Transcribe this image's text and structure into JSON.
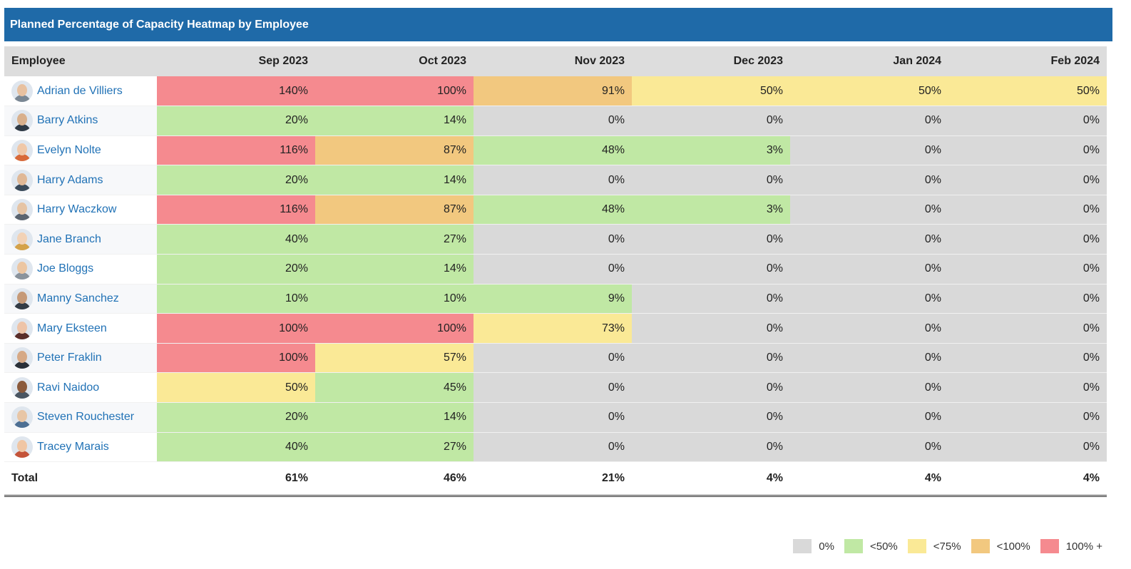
{
  "title": "Planned Percentage of Capacity Heatmap by Employee",
  "columns": {
    "employee": "Employee",
    "months": [
      "Sep 2023",
      "Oct 2023",
      "Nov 2023",
      "Dec 2023",
      "Jan 2024",
      "Feb 2024"
    ]
  },
  "colors": {
    "gray": "#d9d9d9",
    "green": "#c0e8a4",
    "yellow": "#fae996",
    "orange": "#f2c87f",
    "red": "#f58a8f",
    "header_blue": "#1f6aa8",
    "link": "#2172b6"
  },
  "rows": [
    {
      "name": "Adrian de Villiers",
      "values": [
        "140%",
        "100%",
        "91%",
        "50%",
        "50%",
        "50%"
      ],
      "avatar": {
        "skin": "#e8c1a0",
        "shirt": "#7a8793"
      }
    },
    {
      "name": "Barry Atkins",
      "values": [
        "20%",
        "14%",
        "0%",
        "0%",
        "0%",
        "0%"
      ],
      "avatar": {
        "skin": "#d9b08c",
        "shirt": "#2f3a45"
      }
    },
    {
      "name": "Evelyn Nolte",
      "values": [
        "116%",
        "87%",
        "48%",
        "3%",
        "0%",
        "0%"
      ],
      "avatar": {
        "skin": "#f0c8a8",
        "shirt": "#d86a3a"
      }
    },
    {
      "name": "Harry Adams",
      "values": [
        "20%",
        "14%",
        "0%",
        "0%",
        "0%",
        "0%"
      ],
      "avatar": {
        "skin": "#e0b896",
        "shirt": "#3a4a5a"
      }
    },
    {
      "name": "Harry Waczkow",
      "values": [
        "116%",
        "87%",
        "48%",
        "3%",
        "0%",
        "0%"
      ],
      "avatar": {
        "skin": "#e6c4a4",
        "shirt": "#5a6470"
      }
    },
    {
      "name": "Jane Branch",
      "values": [
        "40%",
        "27%",
        "0%",
        "0%",
        "0%",
        "0%"
      ],
      "avatar": {
        "skin": "#f2d2b6",
        "shirt": "#d4a24a"
      }
    },
    {
      "name": "Joe Bloggs",
      "values": [
        "20%",
        "14%",
        "0%",
        "0%",
        "0%",
        "0%"
      ],
      "avatar": {
        "skin": "#ecc6a2",
        "shirt": "#8a939c"
      }
    },
    {
      "name": "Manny Sanchez",
      "values": [
        "10%",
        "10%",
        "9%",
        "0%",
        "0%",
        "0%"
      ],
      "avatar": {
        "skin": "#c69a78",
        "shirt": "#333c45"
      }
    },
    {
      "name": "Mary Eksteen",
      "values": [
        "100%",
        "100%",
        "73%",
        "0%",
        "0%",
        "0%"
      ],
      "avatar": {
        "skin": "#eec4a8",
        "shirt": "#5a2e2a"
      }
    },
    {
      "name": "Peter Fraklin",
      "values": [
        "100%",
        "57%",
        "0%",
        "0%",
        "0%",
        "0%"
      ],
      "avatar": {
        "skin": "#d6a986",
        "shirt": "#2a3038"
      }
    },
    {
      "name": "Ravi Naidoo",
      "values": [
        "50%",
        "45%",
        "0%",
        "0%",
        "0%",
        "0%"
      ],
      "avatar": {
        "skin": "#8a5a3c",
        "shirt": "#4a5662"
      }
    },
    {
      "name": "Steven Rouchester",
      "values": [
        "20%",
        "14%",
        "0%",
        "0%",
        "0%",
        "0%"
      ],
      "avatar": {
        "skin": "#e8c6a6",
        "shirt": "#4d6f93"
      }
    },
    {
      "name": "Tracey Marais",
      "values": [
        "40%",
        "27%",
        "0%",
        "0%",
        "0%",
        "0%"
      ],
      "avatar": {
        "skin": "#f0c6a4",
        "shirt": "#c4543a"
      }
    }
  ],
  "total": {
    "label": "Total",
    "values": [
      "61%",
      "46%",
      "21%",
      "4%",
      "4%",
      "4%"
    ]
  },
  "legend": [
    {
      "label": "0%",
      "color": "#d9d9d9"
    },
    {
      "label": "<50%",
      "color": "#c0e8a4"
    },
    {
      "label": "<75%",
      "color": "#fae996"
    },
    {
      "label": "<100%",
      "color": "#f2c87f"
    },
    {
      "label": "100% +",
      "color": "#f58a8f"
    }
  ]
}
